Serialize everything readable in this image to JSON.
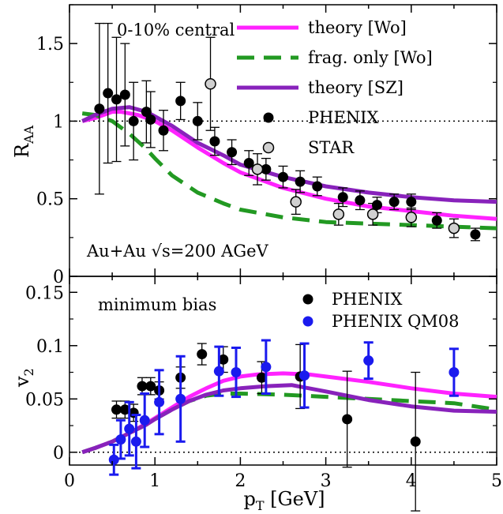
{
  "chart_data": [
    {
      "type": "scatter",
      "panel": "top",
      "title": "",
      "xlabel": "",
      "ylabel_main": "R",
      "ylabel_sub": "AA",
      "xlim": [
        0,
        5
      ],
      "ylim": [
        0,
        1.75
      ],
      "yticks": [
        0,
        0.5,
        1,
        1.5
      ],
      "ytick_labels": [
        "0",
        "0.5",
        "1",
        "1.5"
      ],
      "reference_line": 1,
      "annotations": {
        "centrality": "0-10% central",
        "system": "Au+Au √s=200 AGeV"
      },
      "legend_position": "top-right",
      "series": [
        {
          "name": "theory [Wo]",
          "kind": "line",
          "style": "solid",
          "color": "#ff22ff",
          "x": [
            0.15,
            0.3,
            0.5,
            0.6,
            0.8,
            1.0,
            1.2,
            1.5,
            1.8,
            2.0,
            2.5,
            3.0,
            3.5,
            4.0,
            4.5,
            5.0
          ],
          "y": [
            1.0,
            1.02,
            1.06,
            1.06,
            1.04,
            1.0,
            0.94,
            0.83,
            0.73,
            0.67,
            0.57,
            0.5,
            0.45,
            0.42,
            0.39,
            0.37
          ]
        },
        {
          "name": "frag. only [Wo]",
          "kind": "line",
          "style": "dashed",
          "color": "#229922",
          "x": [
            0.15,
            0.3,
            0.5,
            0.7,
            0.9,
            1.0,
            1.2,
            1.5,
            1.8,
            2.0,
            2.5,
            3.0,
            3.5,
            4.0,
            4.5,
            5.0
          ],
          "y": [
            1.05,
            1.04,
            1.0,
            0.92,
            0.82,
            0.76,
            0.65,
            0.54,
            0.47,
            0.43,
            0.38,
            0.35,
            0.34,
            0.33,
            0.32,
            0.31
          ]
        },
        {
          "name": "theory [SZ]",
          "kind": "line",
          "style": "solid",
          "color": "#8822bb",
          "x": [
            0.15,
            0.3,
            0.5,
            0.7,
            0.9,
            1.0,
            1.2,
            1.5,
            1.8,
            2.0,
            2.5,
            3.0,
            3.5,
            4.0,
            4.5,
            5.0
          ],
          "y": [
            1.0,
            1.04,
            1.08,
            1.09,
            1.06,
            1.03,
            0.97,
            0.86,
            0.78,
            0.72,
            0.64,
            0.58,
            0.54,
            0.51,
            0.49,
            0.48
          ]
        },
        {
          "name": "PHENIX",
          "kind": "points",
          "marker": "filled-circle",
          "color": "#000000",
          "x": [
            0.35,
            0.45,
            0.55,
            0.65,
            0.75,
            0.9,
            0.95,
            1.1,
            1.3,
            1.5,
            1.7,
            1.9,
            2.1,
            2.3,
            2.5,
            2.7,
            2.9,
            3.2,
            3.4,
            3.6,
            3.8,
            4.0,
            4.3,
            4.75
          ],
          "y": [
            1.08,
            1.18,
            1.14,
            1.17,
            1.0,
            1.06,
            1.01,
            0.94,
            1.13,
            1.0,
            0.87,
            0.8,
            0.73,
            0.69,
            0.64,
            0.61,
            0.58,
            0.51,
            0.49,
            0.46,
            0.48,
            0.48,
            0.36,
            0.27
          ],
          "err": [
            0.55,
            0.45,
            0.4,
            0.33,
            0.25,
            0.2,
            0.18,
            0.13,
            0.12,
            0.12,
            0.09,
            0.08,
            0.08,
            0.07,
            0.07,
            0.07,
            0.06,
            0.06,
            0.06,
            0.05,
            0.05,
            0.05,
            0.05,
            0.04
          ]
        },
        {
          "name": "STAR",
          "kind": "points",
          "marker": "open-circle",
          "color": "#000000",
          "x": [
            1.65,
            2.2,
            2.65,
            3.15,
            3.55,
            4.0,
            4.5
          ],
          "y": [
            1.24,
            0.69,
            0.48,
            0.4,
            0.4,
            0.38,
            0.31
          ],
          "err": [
            0.3,
            0.1,
            0.08,
            0.07,
            0.07,
            0.06,
            0.06
          ]
        }
      ]
    },
    {
      "type": "scatter",
      "panel": "bottom",
      "title": "",
      "xlabel_main": "p",
      "xlabel_sub": "T",
      "xlabel_rest": " [GeV]",
      "ylabel_main": "v",
      "ylabel_sub": "2",
      "xlim": [
        0,
        5
      ],
      "ylim": [
        -0.012,
        0.165
      ],
      "xticks": [
        0,
        1,
        2,
        3,
        4,
        5
      ],
      "xtick_labels": [
        "0",
        "1",
        "2",
        "3",
        "4",
        "5"
      ],
      "yticks": [
        0,
        0.05,
        0.1,
        0.15
      ],
      "ytick_labels": [
        "0",
        "0.05",
        "0.1",
        "0.15"
      ],
      "reference_line": 0,
      "annotations": {
        "label": "minimum bias"
      },
      "legend_position": "top-right",
      "series": [
        {
          "name": "",
          "kind": "line",
          "style": "solid",
          "color": "#ff22ff",
          "x": [
            0.15,
            0.3,
            0.5,
            0.7,
            0.9,
            1.0,
            1.2,
            1.4,
            1.6,
            1.8,
            2.0,
            2.2,
            2.5,
            2.8,
            3.0,
            3.5,
            4.0,
            4.5,
            5.0
          ],
          "y": [
            0.0,
            0.004,
            0.01,
            0.018,
            0.027,
            0.032,
            0.042,
            0.052,
            0.06,
            0.067,
            0.071,
            0.073,
            0.074,
            0.073,
            0.071,
            0.066,
            0.06,
            0.055,
            0.052
          ]
        },
        {
          "name": "",
          "kind": "line",
          "style": "dashed",
          "color": "#229922",
          "x": [
            0.15,
            0.3,
            0.5,
            0.7,
            0.9,
            1.0,
            1.2,
            1.4,
            1.6,
            1.8,
            2.0,
            2.5,
            3.0,
            3.5,
            4.0,
            4.5,
            5.0
          ],
          "y": [
            0.0,
            0.004,
            0.01,
            0.018,
            0.026,
            0.031,
            0.04,
            0.048,
            0.053,
            0.055,
            0.055,
            0.054,
            0.052,
            0.05,
            0.048,
            0.046,
            0.04
          ]
        },
        {
          "name": "",
          "kind": "line",
          "style": "solid",
          "color": "#8822bb",
          "x": [
            0.15,
            0.3,
            0.5,
            0.7,
            0.9,
            1.0,
            1.2,
            1.4,
            1.6,
            1.8,
            2.0,
            2.3,
            2.6,
            3.0,
            3.5,
            4.0,
            4.5,
            5.0
          ],
          "y": [
            0.0,
            0.004,
            0.01,
            0.018,
            0.026,
            0.031,
            0.04,
            0.048,
            0.054,
            0.058,
            0.06,
            0.062,
            0.063,
            0.057,
            0.049,
            0.043,
            0.039,
            0.038
          ]
        },
        {
          "name": "PHENIX",
          "kind": "points",
          "marker": "filled-circle",
          "color": "#000000",
          "x": [
            0.55,
            0.65,
            0.75,
            0.85,
            0.95,
            1.05,
            1.3,
            1.55,
            1.8,
            2.25,
            2.7,
            3.25,
            4.05
          ],
          "y": [
            0.04,
            0.04,
            0.037,
            0.062,
            0.062,
            0.058,
            0.07,
            0.092,
            0.087,
            0.07,
            0.071,
            0.031,
            0.01
          ],
          "err": [
            0.008,
            0.008,
            0.008,
            0.008,
            0.008,
            0.008,
            0.01,
            0.01,
            0.012,
            0.015,
            0.03,
            0.045,
            0.065
          ]
        },
        {
          "name": "PHENIX QM08",
          "kind": "points",
          "marker": "filled-circle",
          "color": "#1a1aee",
          "x": [
            0.52,
            0.6,
            0.7,
            0.78,
            0.88,
            1.05,
            1.3,
            1.75,
            1.95,
            2.3,
            2.75,
            3.5,
            4.5
          ],
          "y": [
            -0.007,
            0.012,
            0.022,
            0.01,
            0.03,
            0.047,
            0.05,
            0.076,
            0.075,
            0.08,
            0.072,
            0.086,
            0.075
          ],
          "err": [
            0.014,
            0.018,
            0.025,
            0.025,
            0.025,
            0.03,
            0.04,
            0.023,
            0.023,
            0.025,
            0.03,
            0.017,
            0.022
          ]
        }
      ]
    }
  ]
}
